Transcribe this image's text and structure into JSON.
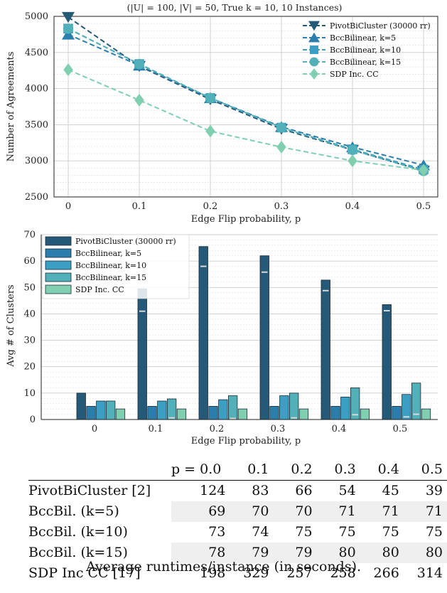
{
  "colors": {
    "pivot": "#245a77",
    "bcc5": "#2b7eab",
    "bcc10": "#3a9fc2",
    "bcc15": "#52b0b9",
    "sdp": "#7fcfb0",
    "bar_edge": "#1b2b3a",
    "grid": "#cccccc"
  },
  "chart_data": [
    {
      "type": "line",
      "title": "(|U| = 100, |V| = 50, True k = 10, 10 Instances)",
      "xlabel": "Edge Flip probability, p",
      "ylabel": "Number of Agreements",
      "x": [
        0,
        0.1,
        0.2,
        0.3,
        0.4,
        0.5
      ],
      "xticks": [
        "0",
        "0.1",
        "0.2",
        "0.3",
        "0.4",
        "0.5"
      ],
      "xlim": [
        -0.02,
        0.52
      ],
      "ylim": [
        2500,
        5000
      ],
      "yticks": [
        2500,
        3000,
        3500,
        4000,
        4500,
        5000
      ],
      "grid": true,
      "legend_position": "top-right",
      "series": [
        {
          "name": "PivotBiCluster (30000 rr)",
          "marker": "triangle-down",
          "color_key": "pivot",
          "values": [
            4990,
            4310,
            3850,
            3440,
            3150,
            2860
          ]
        },
        {
          "name": "BccBilinear, k=5",
          "marker": "triangle-up",
          "color_key": "bcc5",
          "values": [
            4750,
            4320,
            3870,
            3470,
            3190,
            2940
          ]
        },
        {
          "name": "BccBilinear, k=10",
          "marker": "square",
          "color_key": "bcc10",
          "values": [
            4830,
            4340,
            3870,
            3460,
            3160,
            2880
          ]
        },
        {
          "name": "BccBilinear, k=15",
          "marker": "circle",
          "color_key": "bcc15",
          "values": [
            4830,
            4340,
            3870,
            3460,
            3150,
            2860
          ]
        },
        {
          "name": "SDP Inc. CC",
          "marker": "diamond",
          "color_key": "sdp",
          "values": [
            4260,
            3840,
            3410,
            3190,
            3000,
            2870
          ]
        }
      ]
    },
    {
      "type": "bar",
      "xlabel": "Edge Flip probability, p",
      "ylabel": "Avg # of Clusters",
      "categories": [
        "0",
        "0.1",
        "0.2",
        "0.3",
        "0.4",
        "0.5"
      ],
      "ylim": [
        0,
        70
      ],
      "yticks": [
        0,
        10,
        20,
        30,
        40,
        50,
        60,
        70
      ],
      "grid": true,
      "legend_position": "top-left",
      "series": [
        {
          "name": "PivotBiCluster (30000 rr)",
          "color_key": "pivot",
          "values": [
            10,
            49.5,
            65.5,
            62,
            52.8,
            43.5
          ],
          "inner_marks": [
            null,
            41,
            58,
            55.8,
            48.8,
            41.2
          ]
        },
        {
          "name": "BccBilinear, k=5",
          "color_key": "bcc5",
          "values": [
            5,
            5,
            5,
            5,
            5,
            5
          ],
          "inner_marks": [
            null,
            null,
            null,
            null,
            null,
            null
          ]
        },
        {
          "name": "BccBilinear, k=10",
          "color_key": "bcc10",
          "values": [
            7,
            7,
            7.5,
            9,
            8.5,
            9.5
          ],
          "inner_marks": [
            null,
            null,
            null,
            null,
            null,
            1
          ]
        },
        {
          "name": "BccBilinear, k=15",
          "color_key": "bcc15",
          "values": [
            7,
            7.8,
            9,
            10,
            12,
            13.8
          ],
          "inner_marks": [
            null,
            0.6,
            0.4,
            0.6,
            1.8,
            2
          ]
        },
        {
          "name": "SDP Inc. CC",
          "color_key": "sdp",
          "values": [
            4,
            4,
            4,
            4,
            4,
            4
          ],
          "inner_marks": [
            null,
            null,
            null,
            null,
            null,
            null
          ]
        }
      ]
    },
    {
      "type": "table",
      "header_label": "p = 0.0",
      "columns": [
        "0.1",
        "0.2",
        "0.3",
        "0.4",
        "0.5"
      ],
      "rows": [
        {
          "name": "PivotBiCluster [2]",
          "values": [
            "124",
            "83",
            "66",
            "54",
            "45",
            "39"
          ]
        },
        {
          "name": "BccBil. (k=5)",
          "values": [
            "69",
            "70",
            "70",
            "71",
            "71",
            "71"
          ]
        },
        {
          "name": "BccBil. (k=10)",
          "values": [
            "73",
            "74",
            "75",
            "75",
            "75",
            "75"
          ]
        },
        {
          "name": "BccBil. (k=15)",
          "values": [
            "78",
            "79",
            "79",
            "80",
            "80",
            "80"
          ]
        },
        {
          "name": "SDP Inc CC [17]",
          "values": [
            "198",
            "329",
            "257",
            "258",
            "266",
            "314"
          ]
        }
      ],
      "caption": "Average runtimes/instance (in seconds)."
    }
  ]
}
